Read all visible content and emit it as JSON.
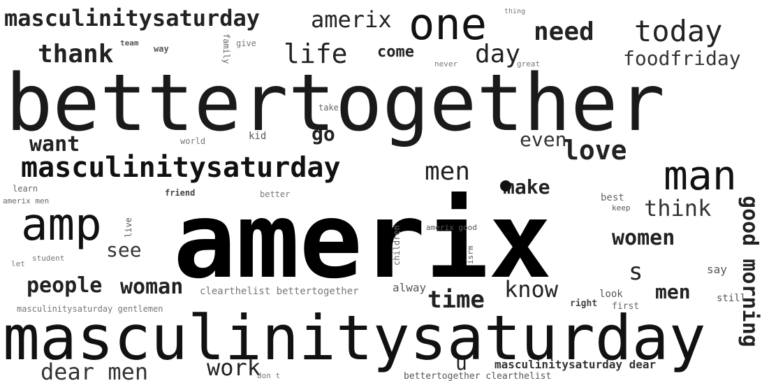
{
  "cloud": {
    "words": [
      {
        "text": "amerix",
        "size": 150,
        "weight": "bold",
        "color": "#000000"
      },
      {
        "text": "bettertogether",
        "size": 108,
        "weight": "normal",
        "color": "#1a1a1a"
      },
      {
        "text": "masculinitysaturday",
        "size": 84,
        "weight": "normal",
        "color": "#111111"
      },
      {
        "text": "masculinitysaturday",
        "size": 40,
        "weight": "bold",
        "color": "#111111"
      },
      {
        "text": "masculinitysaturday",
        "size": 30,
        "weight": "bold",
        "color": "#222222"
      },
      {
        "text": "one",
        "size": 62,
        "weight": "normal",
        "color": "#111111"
      },
      {
        "text": "man",
        "size": 56,
        "weight": "normal",
        "color": "#111111"
      },
      {
        "text": "amp",
        "size": 60,
        "weight": "normal",
        "color": "#111111"
      },
      {
        "text": "amerix",
        "size": 30,
        "weight": "normal",
        "color": "#222222"
      },
      {
        "text": "today",
        "size": 40,
        "weight": "normal",
        "color": "#222222"
      },
      {
        "text": "need",
        "size": 34,
        "weight": "bold",
        "color": "#222222"
      },
      {
        "text": "thank",
        "size": 34,
        "weight": "bold",
        "color": "#222222"
      },
      {
        "text": "life",
        "size": 36,
        "weight": "normal",
        "color": "#222222"
      },
      {
        "text": "come",
        "size": 22,
        "weight": "bold",
        "color": "#222222"
      },
      {
        "text": "day",
        "size": 34,
        "weight": "normal",
        "color": "#222222"
      },
      {
        "text": "foodfriday",
        "size": 28,
        "weight": "normal",
        "color": "#333333"
      },
      {
        "text": "love",
        "size": 36,
        "weight": "bold",
        "color": "#222222"
      },
      {
        "text": "even",
        "size": 28,
        "weight": "normal",
        "color": "#333333"
      },
      {
        "text": "go",
        "size": 28,
        "weight": "bold",
        "color": "#222222"
      },
      {
        "text": "want",
        "size": 30,
        "weight": "bold",
        "color": "#222222"
      },
      {
        "text": "men",
        "size": 34,
        "weight": "normal",
        "color": "#222222"
      },
      {
        "text": "make",
        "size": 28,
        "weight": "bold",
        "color": "#222222"
      },
      {
        "text": "think",
        "size": 32,
        "weight": "normal",
        "color": "#333333"
      },
      {
        "text": "women",
        "size": 30,
        "weight": "bold",
        "color": "#222222"
      },
      {
        "text": "see",
        "size": 26,
        "weight": "normal",
        "color": "#333333"
      },
      {
        "text": "people",
        "size": 28,
        "weight": "bold",
        "color": "#222222"
      },
      {
        "text": "woman",
        "size": 28,
        "weight": "bold",
        "color": "#222222"
      },
      {
        "text": "time",
        "size": 32,
        "weight": "bold",
        "color": "#222222"
      },
      {
        "text": "know",
        "size": 30,
        "weight": "normal",
        "color": "#222222"
      },
      {
        "text": "s",
        "size": 32,
        "weight": "normal",
        "color": "#222222"
      },
      {
        "text": "men",
        "size": 26,
        "weight": "bold",
        "color": "#222222"
      },
      {
        "text": "good morning",
        "size": 30,
        "weight": "bold",
        "color": "#222222"
      },
      {
        "text": "dear men",
        "size": 30,
        "weight": "normal",
        "color": "#333333"
      },
      {
        "text": "work",
        "size": 30,
        "weight": "normal",
        "color": "#222222"
      },
      {
        "text": "u",
        "size": 26,
        "weight": "normal",
        "color": "#222222"
      },
      {
        "text": "masculinitysaturday dear",
        "size": 16,
        "weight": "bold",
        "color": "#333333"
      },
      {
        "text": "alway",
        "size": 16,
        "weight": "normal",
        "color": "#555555"
      },
      {
        "text": "say",
        "size": 16,
        "weight": "normal",
        "color": "#555555"
      },
      {
        "text": "best",
        "size": 14,
        "weight": "normal",
        "color": "#666666"
      },
      {
        "text": "keep",
        "size": 11,
        "weight": "normal",
        "color": "#555555"
      },
      {
        "text": "look",
        "size": 14,
        "weight": "normal",
        "color": "#555555"
      },
      {
        "text": "right",
        "size": 13,
        "weight": "bold",
        "color": "#444444"
      },
      {
        "text": "first",
        "size": 13,
        "weight": "normal",
        "color": "#666666"
      },
      {
        "text": "still",
        "size": 14,
        "weight": "normal",
        "color": "#555555"
      },
      {
        "text": "clearthelist bettertogether",
        "size": 14,
        "weight": "normal",
        "color": "#777777"
      },
      {
        "text": "masculinitysaturday gentlemen",
        "size": 12,
        "weight": "normal",
        "color": "#777777"
      },
      {
        "text": "bettertogether clearthelist",
        "size": 13,
        "weight": "normal",
        "color": "#555555"
      },
      {
        "text": "amerix good",
        "size": 11,
        "weight": "normal",
        "color": "#555555"
      },
      {
        "text": "amerix men",
        "size": 11,
        "weight": "normal",
        "color": "#666666"
      },
      {
        "text": "friend",
        "size": 12,
        "weight": "bold",
        "color": "#444444"
      },
      {
        "text": "better",
        "size": 12,
        "weight": "normal",
        "color": "#777777"
      },
      {
        "text": "learn",
        "size": 12,
        "weight": "normal",
        "color": "#666666"
      },
      {
        "text": "student",
        "size": 11,
        "weight": "normal",
        "color": "#777777"
      },
      {
        "text": "let",
        "size": 11,
        "weight": "normal",
        "color": "#777777"
      },
      {
        "text": "don t",
        "size": 11,
        "weight": "normal",
        "color": "#777777"
      },
      {
        "text": "world",
        "size": 12,
        "weight": "normal",
        "color": "#777777"
      },
      {
        "text": "kid",
        "size": 14,
        "weight": "normal",
        "color": "#555555"
      },
      {
        "text": "take",
        "size": 12,
        "weight": "normal",
        "color": "#666666"
      },
      {
        "text": "never",
        "size": 11,
        "weight": "normal",
        "color": "#777777"
      },
      {
        "text": "great",
        "size": 11,
        "weight": "normal",
        "color": "#777777"
      },
      {
        "text": "give",
        "size": 12,
        "weight": "normal",
        "color": "#777777"
      },
      {
        "text": "team",
        "size": 11,
        "weight": "bold",
        "color": "#555555"
      },
      {
        "text": "way",
        "size": 12,
        "weight": "bold",
        "color": "#555555"
      },
      {
        "text": "thing",
        "size": 10,
        "weight": "normal",
        "color": "#777777"
      },
      {
        "text": "family",
        "size": 12,
        "weight": "normal",
        "color": "#666666"
      },
      {
        "text": "children",
        "size": 12,
        "weight": "normal",
        "color": "#666666"
      },
      {
        "text": "live",
        "size": 12,
        "weight": "normal",
        "color": "#555555"
      },
      {
        "text": "isrm",
        "size": 11,
        "weight": "normal",
        "color": "#555555"
      }
    ]
  }
}
